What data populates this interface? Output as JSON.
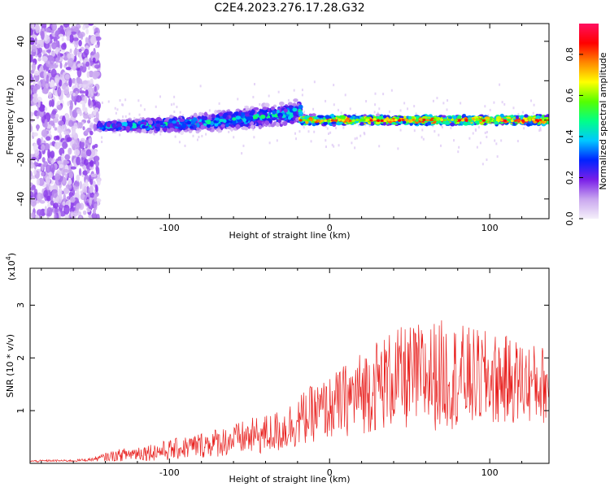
{
  "figure": {
    "title": "C2E4.2023.276.17.28.G32"
  },
  "chart_data": [
    {
      "type": "heatmap",
      "title": "C2E4.2023.276.17.28.G32",
      "xlabel": "Height of straight line (km)",
      "ylabel": "Frequency (Hz)",
      "xlim": [
        -187,
        137
      ],
      "ylim": [
        -50,
        49
      ],
      "x_ticks": [
        -100,
        0,
        100
      ],
      "x_tick_labels": [
        "-100",
        "0",
        "100"
      ],
      "y_ticks": [
        -40,
        -20,
        0,
        20,
        40
      ],
      "y_tick_labels": [
        "-40",
        "-20",
        "0",
        "20",
        "40"
      ],
      "colorbar": {
        "label": "Normalized spectral amplitude",
        "range": [
          0.0,
          0.95
        ],
        "ticks": [
          0.0,
          0.2,
          0.4,
          0.6,
          0.8
        ],
        "tick_labels": [
          "0.0",
          "0.2",
          "0.4",
          "0.6",
          "0.8"
        ],
        "colormap": "rainbow",
        "colors": [
          "#f5f0fa",
          "#c9a6ef",
          "#7a1fe8",
          "#0022ff",
          "#00c8ff",
          "#00ff88",
          "#55ff00",
          "#ffff00",
          "#ff8800",
          "#ff0000",
          "#ff1060"
        ]
      },
      "features": [
        {
          "x_range": [
            -187,
            -144
          ],
          "freq_range": [
            -50,
            49
          ],
          "amplitude": 0.1,
          "description_kind": "noise"
        },
        {
          "x_range": [
            -144,
            -18
          ],
          "freq_center_start": -3,
          "freq_center_end": 4,
          "amplitude": 0.35
        },
        {
          "x_range": [
            -18,
            137
          ],
          "freq_center": 0,
          "amplitude": 0.85
        }
      ]
    },
    {
      "type": "line",
      "xlabel": "Height of straight line (km)",
      "ylabel": "SNR (10 * v/v)",
      "y_multiplier_label": "(x10",
      "y_multiplier_exp": "4",
      "y_multiplier_close": ")",
      "xlim": [
        -187,
        137
      ],
      "ylim": [
        0,
        3.7
      ],
      "x_ticks": [
        -100,
        0,
        100
      ],
      "x_tick_labels": [
        "-100",
        "0",
        "100"
      ],
      "y_ticks": [
        1,
        2,
        3
      ],
      "y_tick_labels": [
        "1",
        "2",
        "3"
      ],
      "color": "#e8201e",
      "series": [
        {
          "x": [
            -187,
            -175,
            -160,
            -150,
            -145,
            -140,
            -130,
            -120,
            -110,
            -100,
            -90,
            -80,
            -70,
            -60,
            -50,
            -40,
            -30,
            -20,
            -10,
            0,
            10,
            20,
            30,
            40,
            50,
            60,
            70,
            80,
            90,
            100,
            110,
            120,
            130,
            137
          ],
          "y": [
            0.04,
            0.05,
            0.05,
            0.07,
            0.09,
            0.12,
            0.16,
            0.2,
            0.22,
            0.25,
            0.3,
            0.35,
            0.4,
            0.45,
            0.5,
            0.55,
            0.62,
            0.8,
            0.95,
            1.05,
            1.2,
            1.35,
            1.5,
            1.6,
            1.62,
            1.65,
            1.68,
            1.66,
            1.62,
            1.6,
            1.58,
            1.55,
            1.5,
            1.5
          ],
          "noise": [
            0.02,
            0.02,
            0.02,
            0.03,
            0.05,
            0.08,
            0.12,
            0.15,
            0.17,
            0.2,
            0.22,
            0.25,
            0.28,
            0.3,
            0.35,
            0.38,
            0.42,
            0.5,
            0.55,
            0.6,
            0.7,
            0.8,
            0.9,
            0.95,
            1.0,
            1.05,
            1.05,
            1.0,
            0.95,
            0.9,
            0.85,
            0.8,
            0.75,
            0.75
          ]
        }
      ]
    }
  ]
}
